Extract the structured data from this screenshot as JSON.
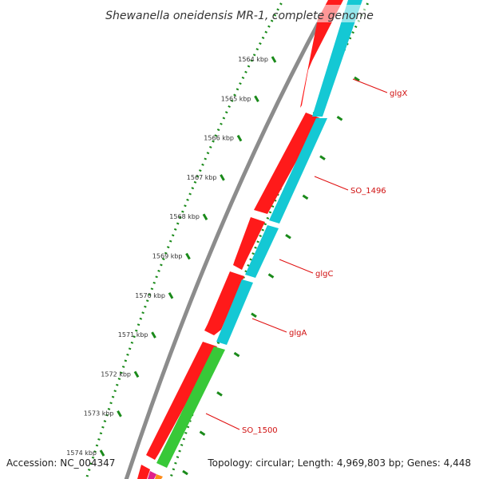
{
  "title": "Shewanella oneidensis MR-1, complete genome",
  "footer": {
    "accession": "Accession: NC_004347",
    "summary": "Topology: circular; Length: 4,969,803 bp; Genes: 4,448"
  },
  "colors": {
    "backbone": "#8c8c8c",
    "cds_red": "#ff1a1a",
    "cds_cyan": "#14c8d4",
    "cds_green": "#38c838",
    "ruler": "#1a8a1a",
    "label_line": "#e01010",
    "label_text": "#d01010"
  },
  "ruler": {
    "unit": "kbp",
    "ticks": [
      {
        "position_kbp": 1564,
        "label": "1564 kbp"
      },
      {
        "position_kbp": 1565,
        "label": "1565 kbp"
      },
      {
        "position_kbp": 1566,
        "label": "1566 kbp"
      },
      {
        "position_kbp": 1567,
        "label": "1567 kbp"
      },
      {
        "position_kbp": 1568,
        "label": "1568 kbp"
      },
      {
        "position_kbp": 1569,
        "label": "1569 kbp"
      },
      {
        "position_kbp": 1570,
        "label": "1570 kbp"
      },
      {
        "position_kbp": 1571,
        "label": "1571 kbp"
      },
      {
        "position_kbp": 1572,
        "label": "1572 kbp"
      },
      {
        "position_kbp": 1573,
        "label": "1573 kbp"
      },
      {
        "position_kbp": 1574,
        "label": "1574 kbp"
      }
    ]
  },
  "gene_labels": [
    "glgX",
    "SO_1496",
    "glgC",
    "glgA",
    "SO_1500"
  ]
}
